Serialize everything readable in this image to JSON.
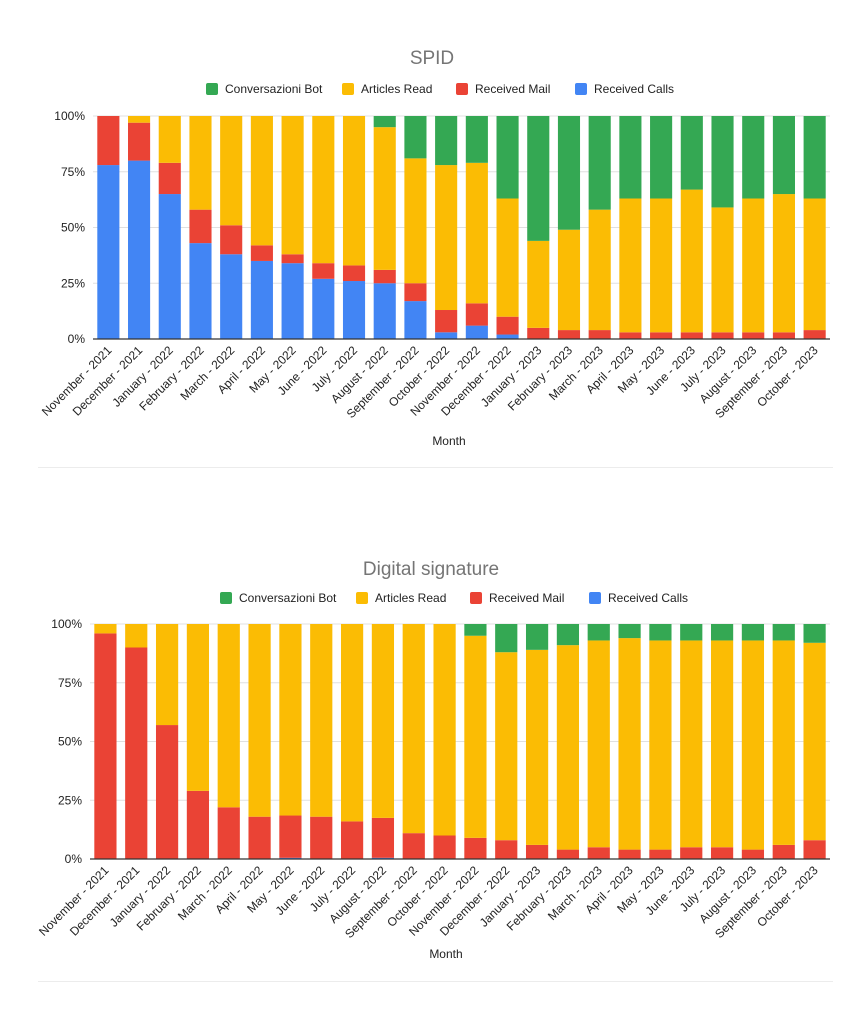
{
  "colors": {
    "Conversazioni Bot": "#34a853",
    "Articles Read": "#fbbc04",
    "Received Mail": "#ea4335",
    "Received Calls": "#4285f4",
    "grid": "#e0e0e0",
    "axis": "#333333",
    "text": "#222222",
    "title": "#757575"
  },
  "chart_data": [
    {
      "type": "bar",
      "stacked": "percent",
      "title": "SPID",
      "xlabel": "Month",
      "ylabel": "",
      "ylim": [
        0,
        100
      ],
      "yticks": [
        "0%",
        "25%",
        "50%",
        "75%",
        "100%"
      ],
      "legend_position": "top",
      "legend": [
        "Conversazioni Bot",
        "Articles Read",
        "Received Mail",
        "Received Calls"
      ],
      "categories": [
        "November - 2021",
        "December - 2021",
        "January - 2022",
        "February - 2022",
        "March - 2022",
        "April - 2022",
        "May - 2022",
        "June - 2022",
        "July - 2022",
        "August - 2022",
        "September - 2022",
        "October - 2022",
        "November - 2022",
        "December - 2022",
        "January - 2023",
        "February - 2023",
        "March - 2023",
        "April - 2023",
        "May - 2023",
        "June - 2023",
        "July - 2023",
        "August - 2023",
        "September - 2023",
        "October - 2023"
      ],
      "series": [
        {
          "name": "Received Calls",
          "values": [
            78,
            80,
            65,
            43,
            38,
            35,
            34,
            27,
            26,
            25,
            17,
            3,
            6,
            2,
            0,
            0,
            0,
            0,
            0,
            0,
            0,
            0,
            0,
            0
          ]
        },
        {
          "name": "Received Mail",
          "values": [
            22,
            17,
            14,
            15,
            13,
            7,
            4,
            7,
            7,
            6,
            8,
            10,
            10,
            8,
            5,
            4,
            4,
            3,
            3,
            3,
            3,
            3,
            3,
            4
          ]
        },
        {
          "name": "Articles Read",
          "values": [
            0,
            3,
            21,
            42,
            49,
            58,
            62,
            66,
            67,
            64,
            56,
            65,
            63,
            53,
            39,
            45,
            54,
            60,
            60,
            64,
            56,
            60,
            62,
            59
          ]
        },
        {
          "name": "Conversazioni Bot",
          "values": [
            0,
            0,
            0,
            0,
            0,
            0,
            0,
            0,
            0,
            5,
            19,
            22,
            21,
            37,
            56,
            51,
            42,
            37,
            37,
            33,
            41,
            37,
            35,
            37
          ]
        }
      ]
    },
    {
      "type": "bar",
      "stacked": "percent",
      "title": "Digital signature",
      "xlabel": "Month",
      "ylabel": "",
      "ylim": [
        0,
        100
      ],
      "yticks": [
        "0%",
        "25%",
        "50%",
        "75%",
        "100%"
      ],
      "legend_position": "top",
      "legend": [
        "Conversazioni Bot",
        "Articles Read",
        "Received Mail",
        "Received Calls"
      ],
      "categories": [
        "November - 2021",
        "December - 2021",
        "January - 2022",
        "February - 2022",
        "March - 2022",
        "April - 2022",
        "May - 2022",
        "June - 2022",
        "July - 2022",
        "August - 2022",
        "September - 2022",
        "October - 2022",
        "November - 2022",
        "December - 2022",
        "January - 2023",
        "February - 2023",
        "March - 2023",
        "April - 2023",
        "May - 2023",
        "June - 2023",
        "July - 2023",
        "August - 2023",
        "September - 2023",
        "October - 2023"
      ],
      "series": [
        {
          "name": "Received Calls",
          "values": [
            0,
            0,
            0,
            0,
            0,
            0,
            0.5,
            0,
            0,
            0.5,
            0,
            0,
            0,
            0,
            0,
            0,
            0,
            0,
            0,
            0,
            0,
            0,
            0,
            0
          ]
        },
        {
          "name": "Received Mail",
          "values": [
            96,
            90,
            57,
            29,
            22,
            18,
            18,
            18,
            16,
            17,
            11,
            10,
            9,
            8,
            6,
            4,
            5,
            4,
            4,
            5,
            5,
            4,
            6,
            8
          ]
        },
        {
          "name": "Articles Read",
          "values": [
            4,
            10,
            43,
            71,
            78,
            82,
            81.5,
            82,
            84,
            82.5,
            89,
            90,
            86,
            80,
            83,
            87,
            88,
            90,
            89,
            88,
            88,
            89,
            87,
            84
          ]
        },
        {
          "name": "Conversazioni Bot",
          "values": [
            0,
            0,
            0,
            0,
            0,
            0,
            0,
            0,
            0,
            0,
            0,
            0,
            5,
            12,
            11,
            9,
            7,
            6,
            7,
            7,
            7,
            7,
            7,
            8
          ]
        }
      ]
    }
  ]
}
